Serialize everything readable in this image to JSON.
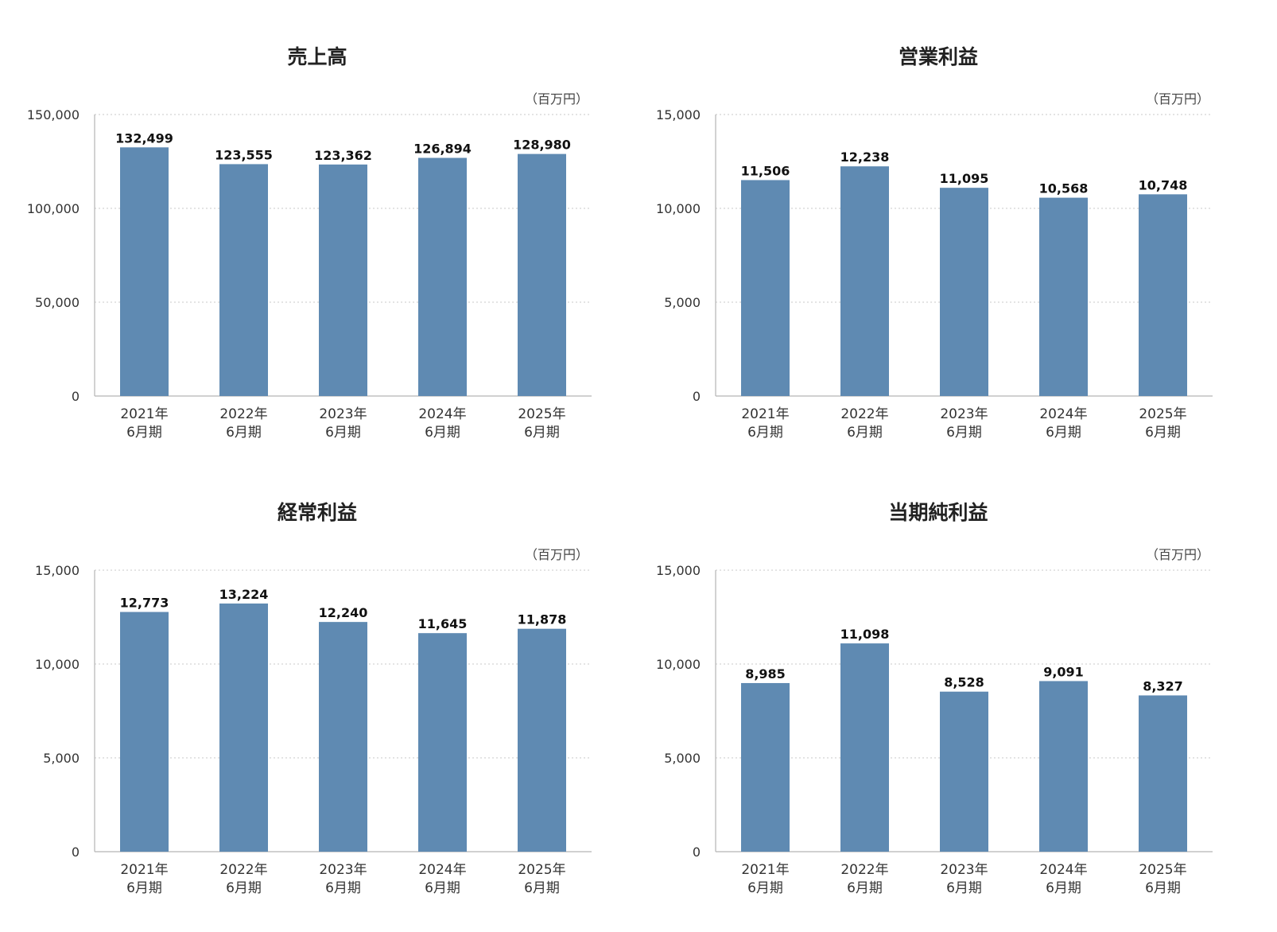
{
  "chart_data": [
    {
      "type": "bar",
      "title": "売上高",
      "unit": "（百万円）",
      "categories": [
        [
          "2021年",
          "6月期"
        ],
        [
          "2022年",
          "6月期"
        ],
        [
          "2023年",
          "6月期"
        ],
        [
          "2024年",
          "6月期"
        ],
        [
          "2025年",
          "6月期"
        ]
      ],
      "values": [
        132499,
        123555,
        123362,
        126894,
        128980
      ],
      "value_labels": [
        "132,499",
        "123,555",
        "123,362",
        "126,894",
        "128,980"
      ],
      "ylim": [
        0,
        150000
      ],
      "yticks": [
        0,
        50000,
        100000,
        150000
      ],
      "ytick_labels": [
        "0",
        "50,000",
        "100,000",
        "150,000"
      ],
      "grid": true,
      "color": "#5f8ab2"
    },
    {
      "type": "bar",
      "title": "営業利益",
      "unit": "（百万円）",
      "categories": [
        [
          "2021年",
          "6月期"
        ],
        [
          "2022年",
          "6月期"
        ],
        [
          "2023年",
          "6月期"
        ],
        [
          "2024年",
          "6月期"
        ],
        [
          "2025年",
          "6月期"
        ]
      ],
      "values": [
        11506,
        12238,
        11095,
        10568,
        10748
      ],
      "value_labels": [
        "11,506",
        "12,238",
        "11,095",
        "10,568",
        "10,748"
      ],
      "ylim": [
        0,
        15000
      ],
      "yticks": [
        0,
        5000,
        10000,
        15000
      ],
      "ytick_labels": [
        "0",
        "5,000",
        "10,000",
        "15,000"
      ],
      "grid": true,
      "color": "#5f8ab2"
    },
    {
      "type": "bar",
      "title": "経常利益",
      "unit": "（百万円）",
      "categories": [
        [
          "2021年",
          "6月期"
        ],
        [
          "2022年",
          "6月期"
        ],
        [
          "2023年",
          "6月期"
        ],
        [
          "2024年",
          "6月期"
        ],
        [
          "2025年",
          "6月期"
        ]
      ],
      "values": [
        12773,
        13224,
        12240,
        11645,
        11878
      ],
      "value_labels": [
        "12,773",
        "13,224",
        "12,240",
        "11,645",
        "11,878"
      ],
      "ylim": [
        0,
        15000
      ],
      "yticks": [
        0,
        5000,
        10000,
        15000
      ],
      "ytick_labels": [
        "0",
        "5,000",
        "10,000",
        "15,000"
      ],
      "grid": true,
      "color": "#5f8ab2"
    },
    {
      "type": "bar",
      "title": "当期純利益",
      "unit": "（百万円）",
      "categories": [
        [
          "2021年",
          "6月期"
        ],
        [
          "2022年",
          "6月期"
        ],
        [
          "2023年",
          "6月期"
        ],
        [
          "2024年",
          "6月期"
        ],
        [
          "2025年",
          "6月期"
        ]
      ],
      "values": [
        8985,
        11098,
        8528,
        9091,
        8327
      ],
      "value_labels": [
        "8,985",
        "11,098",
        "8,528",
        "9,091",
        "8,327"
      ],
      "ylim": [
        0,
        15000
      ],
      "yticks": [
        0,
        5000,
        10000,
        15000
      ],
      "ytick_labels": [
        "0",
        "5,000",
        "10,000",
        "15,000"
      ],
      "grid": true,
      "color": "#5f8ab2"
    }
  ]
}
